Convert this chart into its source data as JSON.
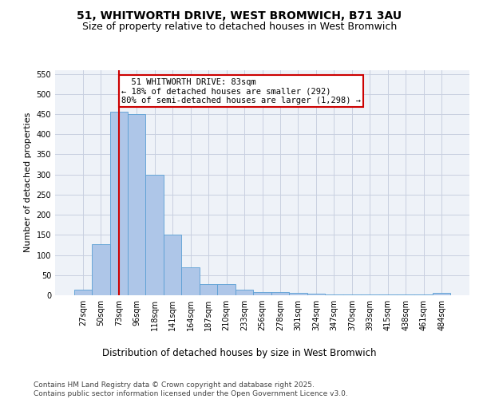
{
  "title_line1": "51, WHITWORTH DRIVE, WEST BROMWICH, B71 3AU",
  "title_line2": "Size of property relative to detached houses in West Bromwich",
  "xlabel": "Distribution of detached houses by size in West Bromwich",
  "ylabel": "Number of detached properties",
  "categories": [
    "27sqm",
    "50sqm",
    "73sqm",
    "96sqm",
    "118sqm",
    "141sqm",
    "164sqm",
    "187sqm",
    "210sqm",
    "233sqm",
    "256sqm",
    "278sqm",
    "301sqm",
    "324sqm",
    "347sqm",
    "370sqm",
    "393sqm",
    "415sqm",
    "438sqm",
    "461sqm",
    "484sqm"
  ],
  "values": [
    13,
    127,
    455,
    450,
    300,
    150,
    70,
    27,
    27,
    13,
    8,
    7,
    5,
    3,
    2,
    2,
    2,
    2,
    2,
    1,
    6
  ],
  "bar_color": "#aec6e8",
  "bar_edge_color": "#5a9fd4",
  "red_line_index": 2,
  "annotation_text": "  51 WHITWORTH DRIVE: 83sqm\n← 18% of detached houses are smaller (292)\n80% of semi-detached houses are larger (1,298) →",
  "annotation_box_color": "#ffffff",
  "annotation_box_edge": "#cc0000",
  "vline_color": "#cc0000",
  "ylim": [
    0,
    560
  ],
  "yticks": [
    0,
    50,
    100,
    150,
    200,
    250,
    300,
    350,
    400,
    450,
    500,
    550
  ],
  "grid_color": "#c8cfe0",
  "bg_color": "#eef2f8",
  "footer_text": "Contains HM Land Registry data © Crown copyright and database right 2025.\nContains public sector information licensed under the Open Government Licence v3.0.",
  "title_fontsize": 10,
  "subtitle_fontsize": 9,
  "xlabel_fontsize": 8.5,
  "ylabel_fontsize": 8,
  "tick_fontsize": 7,
  "annotation_fontsize": 7.5,
  "footer_fontsize": 6.5
}
